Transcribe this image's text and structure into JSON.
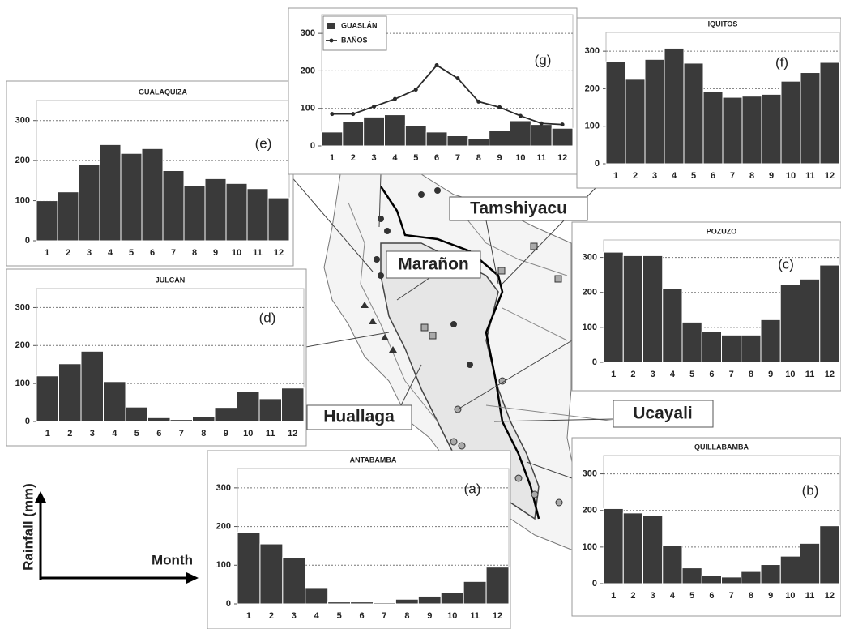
{
  "chart_data": [
    {
      "type": "bar",
      "title": "GUALAQUIZA",
      "annotation": "(e)",
      "categories": [
        "1",
        "2",
        "3",
        "4",
        "5",
        "6",
        "7",
        "8",
        "9",
        "10",
        "11",
        "12"
      ],
      "values": [
        100,
        122,
        190,
        240,
        218,
        230,
        175,
        138,
        155,
        143,
        130,
        107
      ],
      "color": "#3a3a3a",
      "ylim": [
        0,
        350
      ],
      "yticks": [
        0,
        100,
        200,
        300
      ],
      "grid": true
    },
    {
      "type": "combo",
      "annotation": "(g)",
      "categories": [
        "1",
        "2",
        "3",
        "4",
        "5",
        "6",
        "7",
        "8",
        "9",
        "10",
        "11",
        "12"
      ],
      "series": [
        {
          "name": "GUASLÁN",
          "mark": "bar",
          "color": "#3a3a3a",
          "values": [
            37,
            65,
            77,
            83,
            55,
            37,
            27,
            20,
            42,
            67,
            57,
            47
          ]
        },
        {
          "name": "BAÑOS",
          "mark": "line",
          "color": "#2a2a2a",
          "values": [
            85,
            85,
            105,
            125,
            150,
            215,
            180,
            118,
            103,
            80,
            60,
            57
          ]
        }
      ],
      "ylim": [
        0,
        350
      ],
      "yticks": [
        0,
        100,
        200,
        300
      ],
      "grid": true,
      "legend": "top-left"
    },
    {
      "type": "bar",
      "title": "IQUITOS",
      "annotation": "(f)",
      "categories": [
        "1",
        "2",
        "3",
        "4",
        "5",
        "6",
        "7",
        "8",
        "9",
        "10",
        "11",
        "12"
      ],
      "values": [
        272,
        225,
        278,
        308,
        268,
        192,
        177,
        180,
        185,
        220,
        243,
        270
      ],
      "color": "#3a3a3a",
      "ylim": [
        0,
        350
      ],
      "yticks": [
        0,
        100,
        200,
        300
      ],
      "grid": true
    },
    {
      "type": "bar",
      "title": "POZUZO",
      "annotation": "(c)",
      "categories": [
        "1",
        "2",
        "3",
        "4",
        "5",
        "6",
        "7",
        "8",
        "9",
        "10",
        "11",
        "12"
      ],
      "values": [
        315,
        305,
        305,
        210,
        115,
        88,
        78,
        78,
        122,
        222,
        238,
        278
      ],
      "color": "#3a3a3a",
      "ylim": [
        0,
        350
      ],
      "yticks": [
        0,
        100,
        200,
        300
      ],
      "grid": true
    },
    {
      "type": "bar",
      "title": "JULCÁN",
      "annotation": "(d)",
      "categories": [
        "1",
        "2",
        "3",
        "4",
        "5",
        "6",
        "7",
        "8",
        "9",
        "10",
        "11",
        "12"
      ],
      "values": [
        120,
        152,
        185,
        105,
        38,
        10,
        5,
        12,
        37,
        80,
        60,
        88
      ],
      "color": "#3a3a3a",
      "ylim": [
        0,
        350
      ],
      "yticks": [
        0,
        100,
        200,
        300
      ],
      "grid": true
    },
    {
      "type": "bar",
      "title": "ANTABAMBA",
      "annotation": "(a)",
      "categories": [
        "1",
        "2",
        "3",
        "4",
        "5",
        "6",
        "7",
        "8",
        "9",
        "10",
        "11",
        "12"
      ],
      "values": [
        185,
        155,
        120,
        40,
        5,
        5,
        3,
        12,
        20,
        30,
        58,
        95
      ],
      "color": "#3a3a3a",
      "ylim": [
        0,
        350
      ],
      "yticks": [
        0,
        100,
        200,
        300
      ],
      "grid": true
    },
    {
      "type": "bar",
      "title": "QUILLABAMBA",
      "annotation": "(b)",
      "categories": [
        "1",
        "2",
        "3",
        "4",
        "5",
        "6",
        "7",
        "8",
        "9",
        "10",
        "11",
        "12"
      ],
      "values": [
        205,
        193,
        185,
        103,
        43,
        22,
        18,
        33,
        52,
        75,
        110,
        158
      ],
      "color": "#3a3a3a",
      "ylim": [
        0,
        350
      ],
      "yticks": [
        0,
        100,
        200,
        300
      ],
      "grid": true
    }
  ],
  "map_labels": [
    "Tamshiyacu",
    "Marañon",
    "Huallaga",
    "Ucayali"
  ],
  "axis_key": {
    "y_label": "Rainfall (mm)",
    "x_label": "Month"
  }
}
